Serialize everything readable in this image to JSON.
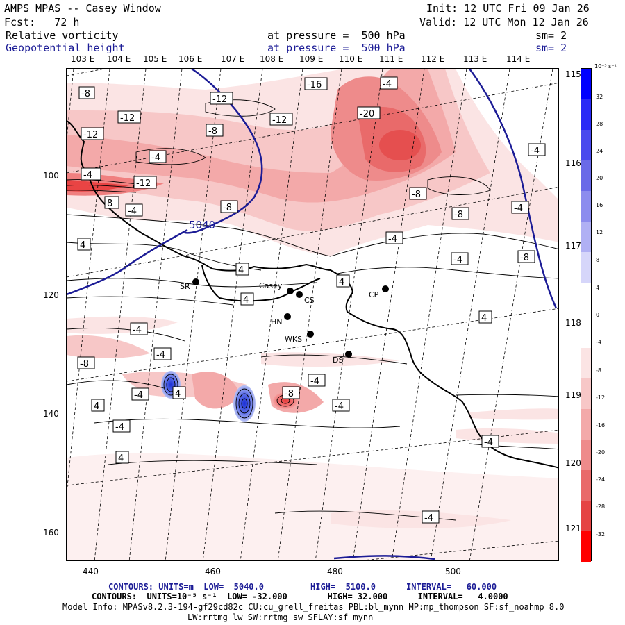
{
  "header": {
    "title": "AMPS MPAS -- Casey Window",
    "init": "Init: 12 UTC Fri 09 Jan 26",
    "fcst": "Fcst:   72 h",
    "valid": "Valid: 12 UTC Mon 12 Jan 26",
    "field1_name": "Relative vorticity",
    "field1_level": "at pressure =  500 hPa",
    "field1_sm": "sm= 2",
    "field2_name": "Geopotential height",
    "field2_level": "at pressure =  500 hPa",
    "field2_sm": "sm= 2"
  },
  "longitudes": [
    "103 E",
    "104 E",
    "105 E",
    "106 E",
    "107 E",
    "108 E",
    "109 E",
    "110 E",
    "111 E",
    "112 E",
    "113 E",
    "114 E"
  ],
  "latitudes_right": [
    "115 E",
    "116 E",
    "117 E",
    "118 E",
    "119 E",
    "120 E",
    "121 E"
  ],
  "y_ticks": [
    "100",
    "120",
    "140",
    "160"
  ],
  "x_ticks": [
    "440",
    "460",
    "480",
    "500"
  ],
  "colorbar": {
    "unit": "10⁻⁵ s⁻¹",
    "labels": [
      "32",
      "28",
      "24",
      "20",
      "16",
      "12",
      "8",
      "4",
      "0",
      "-4",
      "-8",
      "-12",
      "-16",
      "-20",
      "-24",
      "-28",
      "-32"
    ]
  },
  "stations": {
    "sr": "SR",
    "casey": "Casey",
    "cs": "CS",
    "cp": "CP",
    "hn": "HN",
    "wks": "WKS",
    "ds": "DS"
  },
  "contour_labels": {
    "height": "5040",
    "l_m8_a": "-8",
    "l_m12_a": "-12",
    "l_m16": "-16",
    "l_m4_a": "-4",
    "l_m20": "-20",
    "l_m12_b": "-12",
    "l_m8_b": "-8",
    "l_m12_c": "-12",
    "l_m12_d": "-12",
    "l_m4_b": "-4",
    "l_m4_c": "-4",
    "l_m4_d": "-4",
    "l_m12_e": "-12",
    "l_8": "8",
    "l_m4_e": "-4",
    "l_m8_c": "-8",
    "l_m8_d": "-8",
    "l_m8_e": "-8",
    "l_4_a": "4",
    "l_m4_f": "-4",
    "l_m4_g": "-4",
    "l_m8_f": "-8",
    "l_4_b": "4",
    "l_4_c": "4",
    "l_4_d": "4",
    "l_m4_h": "-4",
    "l_4_e": "4",
    "l_m4_i": "-4",
    "l_m4_j": "-4",
    "l_m8_g": "-8",
    "l_m4_k": "-4",
    "l_4_f": "4",
    "l_m4_l": "-4",
    "l_m4_m": "-4",
    "l_4_g": "4",
    "l_m8_h": "-8",
    "l_m4_n": "-4",
    "l_m4_o": "-4",
    "l_m4_p": "-4",
    "l_4_h": "4",
    "l_m4_q": "-4",
    "l_m4_r": "-4",
    "l_m4_s": "-4"
  },
  "footer": {
    "line1_a": "CONTOURS: UNITS=m  LOW=  5040.0",
    "line1_b": "HIGH=  5100.0",
    "line1_c": "INTERVAL=   60.000",
    "line2": "CONTOURS:  UNITS=10⁻⁵ s⁻¹  LOW= -32.000        HIGH= 32.000      INTERVAL=   4.0000",
    "line3": "Model Info: MPASv8.2.3-194-gf29cd82c CU:cu_grell_freitas PBL:bl_mynn MP:mp_thompson SF:sf_noahmp 8.0",
    "line4": "LW:rrtmg_lw SW:rrtmg_sw SFLAY:sf_mynn"
  },
  "colors": {
    "height_contour": "#1c1c96",
    "neg_max": "#ff0000",
    "pos_max": "#0000ff"
  }
}
